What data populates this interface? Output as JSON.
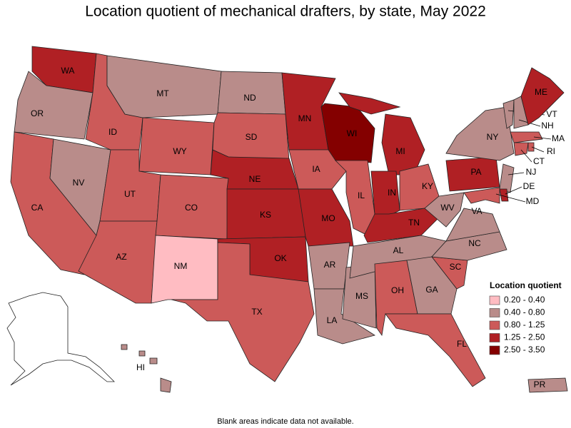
{
  "header": {
    "title": "Location quotient of mechanical drafters, by state, May 2022"
  },
  "legend": {
    "title": "Location quotient",
    "items": [
      {
        "label": "0.20 - 0.40",
        "color": "#ffbcc2"
      },
      {
        "label": "0.40 - 0.80",
        "color": "#b98c8a"
      },
      {
        "label": "0.80 - 1.25",
        "color": "#cc5a59"
      },
      {
        "label": "1.25 - 2.50",
        "color": "#b02024"
      },
      {
        "label": "2.50 - 3.50",
        "color": "#840000"
      }
    ]
  },
  "states": [
    {
      "label": "WA",
      "color": "#b02024"
    },
    {
      "label": "OR",
      "color": "#b98c8a"
    },
    {
      "label": "CA",
      "color": "#cc5a59"
    },
    {
      "label": "NV",
      "color": "#b98c8a"
    },
    {
      "label": "ID",
      "color": "#cc5a59"
    },
    {
      "label": "MT",
      "color": "#b98c8a"
    },
    {
      "label": "WY",
      "color": "#cc5a59"
    },
    {
      "label": "UT",
      "color": "#cc5a59"
    },
    {
      "label": "AZ",
      "color": "#cc5a59"
    },
    {
      "label": "CO",
      "color": "#cc5a59"
    },
    {
      "label": "NM",
      "color": "#ffbcc2"
    },
    {
      "label": "ND",
      "color": "#b98c8a"
    },
    {
      "label": "SD",
      "color": "#cc5a59"
    },
    {
      "label": "NE",
      "color": "#b02024"
    },
    {
      "label": "KS",
      "color": "#b02024"
    },
    {
      "label": "OK",
      "color": "#b02024"
    },
    {
      "label": "TX",
      "color": "#cc5a59"
    },
    {
      "label": "MN",
      "color": "#b02024"
    },
    {
      "label": "IA",
      "color": "#cc5a59"
    },
    {
      "label": "MO",
      "color": "#b02024"
    },
    {
      "label": "AR",
      "color": "#b98c8a"
    },
    {
      "label": "LA",
      "color": "#b98c8a"
    },
    {
      "label": "WI",
      "color": "#840000"
    },
    {
      "label": "IL",
      "color": "#cc5a59"
    },
    {
      "label": "MS",
      "color": "#b98c8a"
    },
    {
      "label": "MI",
      "color": "#b02024"
    },
    {
      "label": "IN",
      "color": "#b02024"
    },
    {
      "label": "KY",
      "color": "#cc5a59"
    },
    {
      "label": "TN",
      "color": "#b02024"
    },
    {
      "label": "AL",
      "color": "#b98c8a"
    },
    {
      "label": "OH",
      "color": "#cc5a59"
    },
    {
      "label": "GA",
      "color": "#b98c8a"
    },
    {
      "label": "FL",
      "color": "#cc5a59"
    },
    {
      "label": "SC",
      "color": "#cc5a59"
    },
    {
      "label": "NC",
      "color": "#b98c8a"
    },
    {
      "label": "VA",
      "color": "#b98c8a"
    },
    {
      "label": "WV",
      "color": "#b98c8a"
    },
    {
      "label": "PA",
      "color": "#b02024"
    },
    {
      "label": "NY",
      "color": "#b98c8a"
    },
    {
      "label": "VT",
      "color": "#b98c8a"
    },
    {
      "label": "NH",
      "color": "#b98c8a"
    },
    {
      "label": "ME",
      "color": "#b02024"
    },
    {
      "label": "MA",
      "color": "#cc5a59"
    },
    {
      "label": "RI",
      "color": "#cc5a59"
    },
    {
      "label": "CT",
      "color": "#cc5a59"
    },
    {
      "label": "NJ",
      "color": "#b98c8a"
    },
    {
      "label": "DE",
      "color": "#b02024"
    },
    {
      "label": "MD",
      "color": "#cc5a59"
    },
    {
      "label": "HI",
      "color": "#b98c8a"
    },
    {
      "label": "PR",
      "color": "#b98c8a"
    }
  ],
  "footnote": "Blank areas indicate data not available."
}
